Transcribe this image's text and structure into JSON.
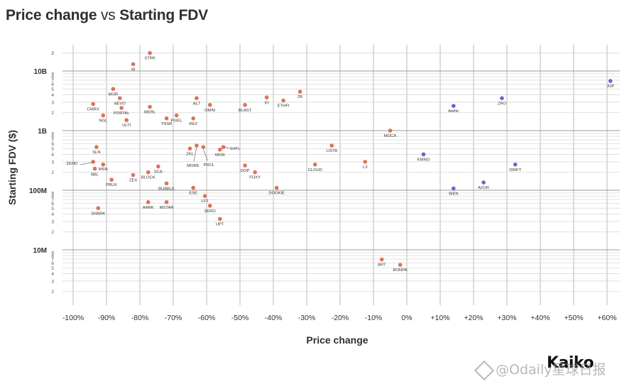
{
  "chart_data": {
    "type": "scatter",
    "title_part1": "Price change",
    "title_vs": "vs",
    "title_part2": "Starting FDV",
    "xlabel": "Price change",
    "ylabel": "Starting FDV ($)",
    "x_scale": "linear",
    "y_scale": "log",
    "xlim": [
      -100,
      62
    ],
    "ylim": [
      1000000,
      30000000000
    ],
    "grid": true,
    "x_ticks": [
      {
        "value": -100,
        "label": "-100%"
      },
      {
        "value": -90,
        "label": "-90%"
      },
      {
        "value": -80,
        "label": "-80%"
      },
      {
        "value": -70,
        "label": "-70%"
      },
      {
        "value": -60,
        "label": "-60%"
      },
      {
        "value": -50,
        "label": "-50%"
      },
      {
        "value": -40,
        "label": "-40%"
      },
      {
        "value": -30,
        "label": "-30%"
      },
      {
        "value": -20,
        "label": "-20%"
      },
      {
        "value": -10,
        "label": "-10%"
      },
      {
        "value": 0,
        "label": "0%"
      },
      {
        "value": 10,
        "label": "+10%"
      },
      {
        "value": 20,
        "label": "+20%"
      },
      {
        "value": 30,
        "label": "+30%"
      },
      {
        "value": 40,
        "label": "+40%"
      },
      {
        "value": 50,
        "label": "+50%"
      },
      {
        "value": 60,
        "label": "+60%"
      }
    ],
    "y_major": [
      {
        "value": 10000000000,
        "label": "10B"
      },
      {
        "value": 1000000000,
        "label": "1B"
      },
      {
        "value": 100000000,
        "label": "100M"
      },
      {
        "value": 10000000,
        "label": "10M"
      }
    ],
    "y_minor_labels": [
      "2",
      "3",
      "4",
      "5",
      "6",
      "7",
      "8",
      "9"
    ],
    "colors": {
      "negative": "#e0705a",
      "positive": "#5b6bd0",
      "grid": "#d8d8d8",
      "text": "#2f2f2f"
    },
    "points": [
      {
        "label": "STRK",
        "x": -77,
        "y": 20000000000,
        "color": "negative"
      },
      {
        "label": "W",
        "x": -82,
        "y": 13000000000,
        "color": "negative"
      },
      {
        "label": "MOR",
        "x": -88,
        "y": 5000000000,
        "color": "negative"
      },
      {
        "label": "AEVO",
        "x": -86,
        "y": 3500000000,
        "color": "negative"
      },
      {
        "label": "PORTAL",
        "x": -85.5,
        "y": 2400000000,
        "color": "negative"
      },
      {
        "label": "CMRX",
        "x": -94,
        "y": 2800000000,
        "color": "negative"
      },
      {
        "label": "NGL",
        "x": -91,
        "y": 1800000000,
        "color": "negative"
      },
      {
        "label": "ULTI",
        "x": -84,
        "y": 1500000000,
        "color": "negative"
      },
      {
        "label": "MERL",
        "x": -77,
        "y": 2500000000,
        "color": "negative"
      },
      {
        "label": "TNSR",
        "x": -72,
        "y": 1600000000,
        "color": "negative"
      },
      {
        "label": "PIXEL",
        "x": -69,
        "y": 1800000000,
        "color": "negative"
      },
      {
        "label": "REZ",
        "x": -64,
        "y": 1600000000,
        "color": "negative"
      },
      {
        "label": "ALT",
        "x": -63,
        "y": 3500000000,
        "color": "negative"
      },
      {
        "label": "OMNI",
        "x": -59,
        "y": 2700000000,
        "color": "negative"
      },
      {
        "label": "BLAST",
        "x": -48.5,
        "y": 2700000000,
        "color": "negative"
      },
      {
        "label": "IO",
        "x": -42,
        "y": 3600000000,
        "color": "negative"
      },
      {
        "label": "ETHFI",
        "x": -37,
        "y": 3200000000,
        "color": "negative"
      },
      {
        "label": "ZK",
        "x": -32,
        "y": 4500000000,
        "color": "negative"
      },
      {
        "label": "MOCA",
        "x": -5,
        "y": 1000000000,
        "color": "negative"
      },
      {
        "label": "LISTA",
        "x": -22.5,
        "y": 560000000,
        "color": "negative"
      },
      {
        "label": "CLOUD",
        "x": -27.5,
        "y": 270000000,
        "color": "negative"
      },
      {
        "label": "L3",
        "x": -12.5,
        "y": 300000000,
        "color": "negative"
      },
      {
        "label": "SLN",
        "x": -93,
        "y": 530000000,
        "color": "negative"
      },
      {
        "label": "ZEND",
        "x": -94,
        "y": 300000000,
        "color": "negative"
      },
      {
        "label": "MSN",
        "x": -91,
        "y": 270000000,
        "color": "negative"
      },
      {
        "label": "BBL",
        "x": -93.5,
        "y": 230000000,
        "color": "negative"
      },
      {
        "label": "PBUX",
        "x": -88.5,
        "y": 150000000,
        "color": "negative"
      },
      {
        "label": "ZEX",
        "x": -82,
        "y": 180000000,
        "color": "negative"
      },
      {
        "label": "BLOCK",
        "x": -77.5,
        "y": 200000000,
        "color": "negative"
      },
      {
        "label": "SCA",
        "x": -74.5,
        "y": 250000000,
        "color": "negative"
      },
      {
        "label": "BUBBLE",
        "x": -72,
        "y": 130000000,
        "color": "negative"
      },
      {
        "label": "ZKL",
        "x": -65,
        "y": 500000000,
        "color": "negative"
      },
      {
        "label": "MORE",
        "x": -63,
        "y": 560000000,
        "color": "negative"
      },
      {
        "label": "PRCL",
        "x": -61,
        "y": 530000000,
        "color": "negative"
      },
      {
        "label": "MON",
        "x": -56,
        "y": 480000000,
        "color": "negative"
      },
      {
        "label": "SHFL",
        "x": -55,
        "y": 530000000,
        "color": "negative"
      },
      {
        "label": "DOP",
        "x": -48.5,
        "y": 260000000,
        "color": "negative"
      },
      {
        "label": "FOXY",
        "x": -45.5,
        "y": 200000000,
        "color": "negative"
      },
      {
        "label": "ESE",
        "x": -64,
        "y": 110000000,
        "color": "negative"
      },
      {
        "label": "DOOKIE",
        "x": -39,
        "y": 110000000,
        "color": "negative"
      },
      {
        "label": "LFT",
        "x": -60.5,
        "y": 80000000,
        "color": "negative"
      },
      {
        "label": "AARK",
        "x": -77.5,
        "y": 63000000,
        "color": "negative"
      },
      {
        "label": "MSTAR",
        "x": -72,
        "y": 63000000,
        "color": "negative"
      },
      {
        "label": "ZERO",
        "x": -59,
        "y": 55000000,
        "color": "negative"
      },
      {
        "label": "UPT",
        "x": -56,
        "y": 33000000,
        "color": "negative"
      },
      {
        "label": "SHARK",
        "x": -92.5,
        "y": 50000000,
        "color": "negative"
      },
      {
        "label": "ART",
        "x": -7.5,
        "y": 6900000,
        "color": "negative"
      },
      {
        "label": "BONPA",
        "x": -2,
        "y": 5600000,
        "color": "negative"
      },
      {
        "label": "JUP",
        "x": 61,
        "y": 6800000000,
        "color": "positive"
      },
      {
        "label": "ZRO",
        "x": 28.5,
        "y": 3500000000,
        "color": "positive"
      },
      {
        "label": "Aethir",
        "x": 14,
        "y": 2600000000,
        "color": "positive"
      },
      {
        "label": "KMNO",
        "x": 5,
        "y": 400000000,
        "color": "positive"
      },
      {
        "label": "DRIFT",
        "x": 32.5,
        "y": 270000000,
        "color": "positive"
      },
      {
        "label": "AZUR",
        "x": 23,
        "y": 135000000,
        "color": "positive"
      },
      {
        "label": "WEN",
        "x": 14,
        "y": 107000000,
        "color": "positive"
      }
    ]
  },
  "brand": "Kaiko",
  "watermark": "@Odaily星球日报"
}
